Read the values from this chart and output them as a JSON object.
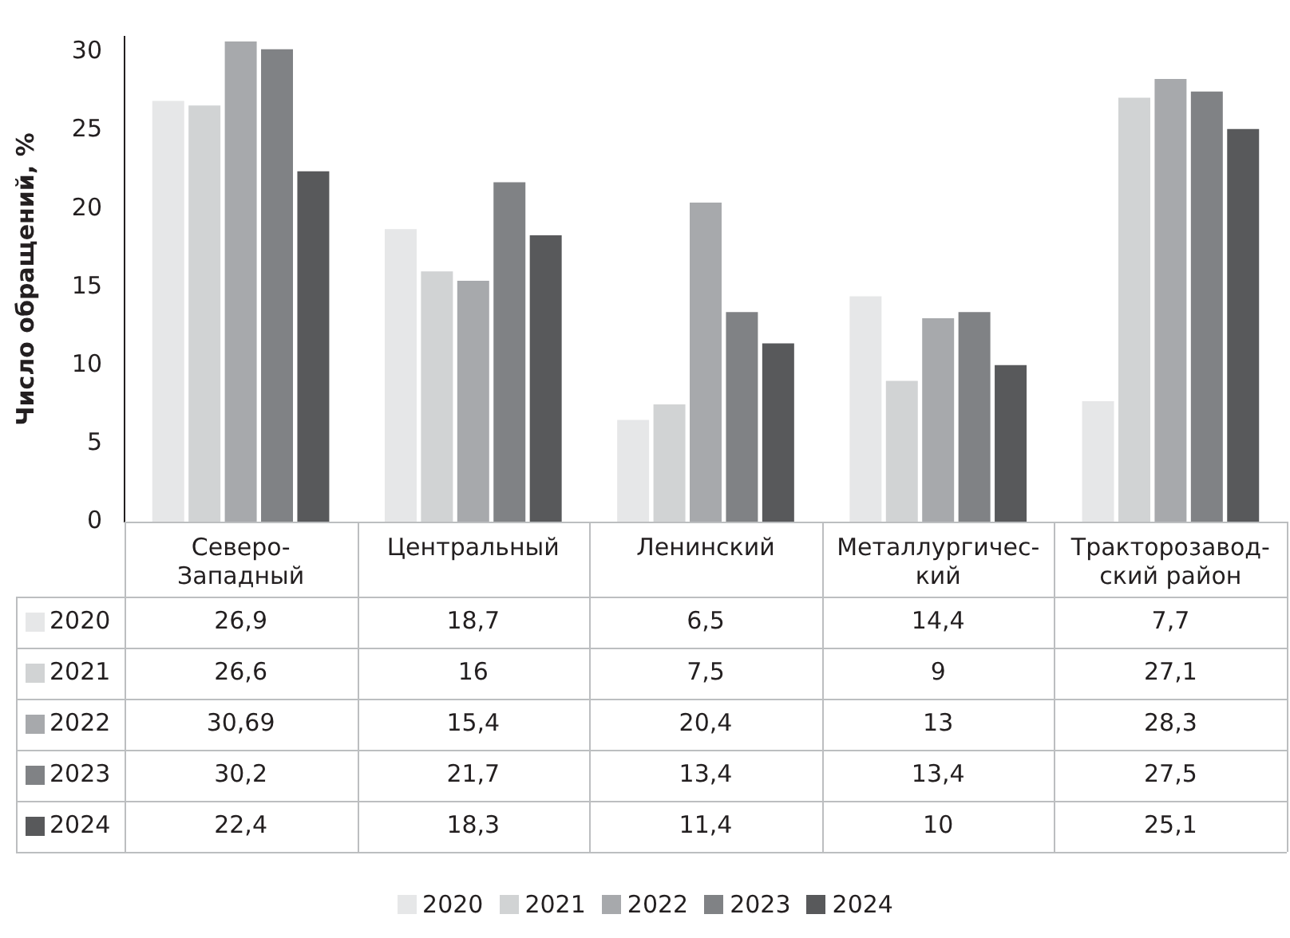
{
  "chart_data": {
    "type": "bar",
    "ylabel": "Число обращений, %",
    "categories": [
      "Северо-\nЗападный",
      "Центральный",
      "Ленинский",
      "Металлургичес-\nкий",
      "Тракторозавод-\nский район"
    ],
    "series": [
      {
        "name": "2020",
        "color": "#e6e7e8",
        "values": [
          26.9,
          18.7,
          6.5,
          14.4,
          7.7
        ],
        "value_labels": [
          "26,9",
          "18,7",
          "6,5",
          "14,4",
          "7,7"
        ]
      },
      {
        "name": "2021",
        "color": "#d1d3d4",
        "values": [
          26.6,
          16,
          7.5,
          9,
          27.1
        ],
        "value_labels": [
          "26,6",
          "16",
          "7,5",
          "9",
          "27,1"
        ]
      },
      {
        "name": "2022",
        "color": "#a7a9ac",
        "values": [
          30.69,
          15.4,
          20.4,
          13,
          28.3
        ],
        "value_labels": [
          "30,69",
          "15,4",
          "20,4",
          "13",
          "28,3"
        ]
      },
      {
        "name": "2023",
        "color": "#808285",
        "values": [
          30.2,
          21.7,
          13.4,
          13.4,
          27.5
        ],
        "value_labels": [
          "30,2",
          "21,7",
          "13,4",
          "13,4",
          "27,5"
        ]
      },
      {
        "name": "2024",
        "color": "#58595b",
        "values": [
          22.4,
          18.3,
          11.4,
          10,
          25.1
        ],
        "value_labels": [
          "22,4",
          "18,3",
          "11,4",
          "10",
          "25,1"
        ]
      }
    ],
    "ylim": [
      0,
      31
    ],
    "yticks": [
      0,
      5,
      10,
      15,
      20,
      25,
      30
    ],
    "grid": false,
    "legend": "bottom"
  }
}
